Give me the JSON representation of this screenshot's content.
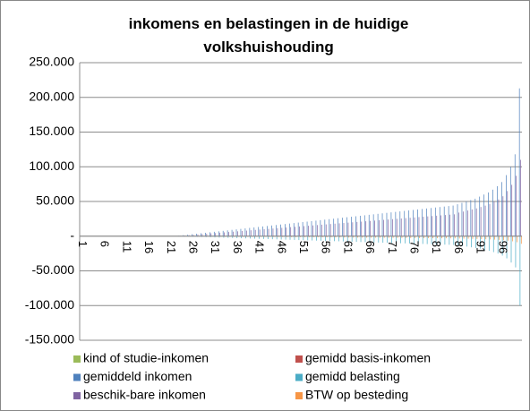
{
  "chart_data": {
    "type": "bar",
    "title": "inkomens en belastingen in de huidige volkshuishouding",
    "categories": [
      "1",
      null,
      null,
      null,
      null,
      "6",
      null,
      null,
      null,
      null,
      "11",
      null,
      null,
      null,
      null,
      "16",
      null,
      null,
      null,
      null,
      "21",
      null,
      null,
      null,
      null,
      "26",
      null,
      null,
      null,
      null,
      "31",
      null,
      null,
      null,
      null,
      "36",
      null,
      null,
      null,
      null,
      "41",
      null,
      null,
      null,
      null,
      "46",
      null,
      null,
      null,
      null,
      "51",
      null,
      null,
      null,
      null,
      "56",
      null,
      null,
      null,
      null,
      "61",
      null,
      null,
      null,
      null,
      "66",
      null,
      null,
      null,
      null,
      "71",
      null,
      null,
      null,
      null,
      "76",
      null,
      null,
      null,
      null,
      "81",
      null,
      null,
      null,
      null,
      "86",
      null,
      null,
      null,
      null,
      "91",
      null,
      null,
      null,
      null,
      "96",
      null,
      null,
      null,
      null
    ],
    "series": [
      {
        "name": "kind of studie-inkomen",
        "color": "#9bbb59",
        "values": [
          0,
          0,
          0,
          0,
          0,
          0,
          0,
          0,
          0,
          0,
          0,
          0,
          0,
          0,
          0,
          0,
          0,
          0,
          0,
          0,
          0,
          0,
          0,
          0,
          0,
          0,
          0,
          0,
          0,
          0,
          0,
          0,
          0,
          0,
          0,
          0,
          0,
          0,
          0,
          0,
          0,
          0,
          0,
          0,
          0,
          0,
          0,
          0,
          0,
          0,
          0,
          0,
          0,
          0,
          0,
          0,
          0,
          0,
          0,
          0,
          0,
          0,
          0,
          0,
          0,
          0,
          0,
          0,
          0,
          0,
          0,
          0,
          0,
          0,
          0,
          0,
          0,
          0,
          0,
          0,
          0,
          0,
          0,
          0,
          0,
          0,
          0,
          0,
          0,
          0,
          0,
          0,
          0,
          0,
          0,
          0,
          0,
          0,
          0,
          0
        ]
      },
      {
        "name": "gemidd basis-inkomen",
        "color": "#c0504d",
        "values": [
          0,
          0,
          0,
          0,
          0,
          0,
          0,
          0,
          0,
          0,
          0,
          0,
          0,
          0,
          0,
          0,
          0,
          0,
          0,
          0,
          0,
          0,
          0,
          0,
          0,
          0,
          0,
          0,
          0,
          0,
          0,
          0,
          0,
          0,
          0,
          0,
          0,
          0,
          0,
          0,
          0,
          0,
          0,
          0,
          0,
          0,
          0,
          0,
          0,
          0,
          0,
          0,
          0,
          0,
          0,
          0,
          0,
          0,
          0,
          0,
          0,
          0,
          0,
          0,
          0,
          0,
          0,
          0,
          0,
          0,
          0,
          0,
          0,
          0,
          0,
          0,
          0,
          0,
          0,
          0,
          0,
          0,
          0,
          0,
          0,
          0,
          0,
          0,
          0,
          0,
          0,
          0,
          0,
          0,
          0,
          0,
          0,
          0,
          0,
          0
        ]
      },
      {
        "name": "gemiddeld inkomen",
        "color": "#4f81bd",
        "values": [
          0,
          0,
          0,
          0,
          0,
          0,
          0,
          0,
          0,
          0,
          0,
          0,
          0,
          0,
          0,
          0,
          0,
          0,
          0,
          0,
          0,
          0,
          700,
          1400,
          2100,
          2800,
          3500,
          4200,
          4900,
          5600,
          6300,
          7000,
          7700,
          8400,
          9100,
          9800,
          10500,
          11200,
          11900,
          12600,
          13300,
          14000,
          14700,
          15400,
          16100,
          16800,
          17500,
          18200,
          18900,
          19600,
          20300,
          21000,
          21700,
          22400,
          23100,
          23800,
          24500,
          25200,
          25900,
          26600,
          27300,
          28000,
          28700,
          29400,
          30100,
          30800,
          31500,
          32200,
          32900,
          33600,
          34300,
          35000,
          35700,
          36400,
          37100,
          37800,
          38500,
          39200,
          39900,
          40600,
          41300,
          42000,
          42700,
          43400,
          44100,
          46000,
          48000,
          50000,
          52000,
          54000,
          57000,
          60000,
          63000,
          67000,
          72000,
          78000,
          88000,
          100000,
          118000,
          213000
        ]
      },
      {
        "name": "gemidd belasting",
        "color": "#4bacc6",
        "values": [
          0,
          0,
          0,
          0,
          0,
          0,
          0,
          0,
          0,
          0,
          0,
          0,
          0,
          0,
          0,
          0,
          0,
          0,
          0,
          0,
          0,
          0,
          -200,
          -400,
          -600,
          -800,
          -1000,
          -1200,
          -1400,
          -1600,
          -1800,
          -2000,
          -2200,
          -2400,
          -2600,
          -2800,
          -3000,
          -3200,
          -3400,
          -3600,
          -3800,
          -4000,
          -4200,
          -4400,
          -4600,
          -4800,
          -5000,
          -5200,
          -5400,
          -5600,
          -5800,
          -6000,
          -6200,
          -6400,
          -6600,
          -6800,
          -7000,
          -7200,
          -7400,
          -7600,
          -7800,
          -8000,
          -8200,
          -8400,
          -8600,
          -8800,
          -9000,
          -9200,
          -9400,
          -9600,
          -9800,
          -10000,
          -10200,
          -10400,
          -10600,
          -10800,
          -11000,
          -11200,
          -11400,
          -11600,
          -11800,
          -12000,
          -12200,
          -12400,
          -12600,
          -13000,
          -14000,
          -15000,
          -16000,
          -17000,
          -18000,
          -20000,
          -21000,
          -23000,
          -25000,
          -28000,
          -32000,
          -38000,
          -45000,
          -100000
        ]
      },
      {
        "name": "beschik-bare inkomen",
        "color": "#8064a2",
        "values": [
          0,
          0,
          0,
          0,
          0,
          0,
          0,
          0,
          0,
          0,
          0,
          0,
          0,
          0,
          0,
          0,
          0,
          0,
          0,
          0,
          0,
          0,
          500,
          1000,
          1500,
          2000,
          2500,
          3000,
          3500,
          4000,
          4500,
          5000,
          5500,
          6000,
          6500,
          7000,
          7500,
          8000,
          8500,
          9000,
          9500,
          10000,
          10500,
          11000,
          11500,
          12000,
          12500,
          13000,
          13500,
          14000,
          14500,
          15000,
          15500,
          16000,
          16500,
          17000,
          17500,
          18000,
          18500,
          19000,
          19500,
          20000,
          20500,
          21000,
          21500,
          22000,
          22500,
          23000,
          23500,
          24000,
          24500,
          25000,
          25500,
          26000,
          26500,
          27000,
          27500,
          28000,
          28500,
          29000,
          29500,
          30000,
          30500,
          31000,
          31500,
          34000,
          35500,
          37000,
          38500,
          40000,
          42000,
          44000,
          46500,
          49500,
          53000,
          57500,
          65000,
          74000,
          87000,
          110000
        ]
      },
      {
        "name": "BTW op besteding",
        "color": "#f79646",
        "values": [
          0,
          0,
          0,
          0,
          0,
          0,
          0,
          0,
          0,
          0,
          0,
          0,
          0,
          0,
          0,
          0,
          0,
          0,
          0,
          0,
          0,
          0,
          -50,
          -100,
          -150,
          -200,
          -250,
          -300,
          -350,
          -400,
          -450,
          -500,
          -550,
          -600,
          -650,
          -700,
          -750,
          -800,
          -850,
          -900,
          -950,
          -1000,
          -1050,
          -1100,
          -1150,
          -1200,
          -1250,
          -1300,
          -1350,
          -1400,
          -1450,
          -1500,
          -1550,
          -1600,
          -1650,
          -1700,
          -1750,
          -1800,
          -1850,
          -1900,
          -1950,
          -2000,
          -2050,
          -2100,
          -2150,
          -2200,
          -2250,
          -2300,
          -2350,
          -2400,
          -2450,
          -2500,
          -2550,
          -2600,
          -2650,
          -2700,
          -2750,
          -2800,
          -2850,
          -2900,
          -2950,
          -3000,
          -3050,
          -3100,
          -3150,
          -3400,
          -3550,
          -3700,
          -3850,
          -4000,
          -4200,
          -4400,
          -4650,
          -4950,
          -5300,
          -5750,
          -6500,
          -7400,
          -8700,
          -11000
        ]
      }
    ],
    "ylim": [
      -150000,
      250000
    ],
    "yticks": [
      {
        "value": -150000,
        "label": "-150.000"
      },
      {
        "value": -100000,
        "label": "-100.000"
      },
      {
        "value": -50000,
        "label": "-50.000"
      },
      {
        "value": 0,
        "label": "-"
      },
      {
        "value": 50000,
        "label": "50.000"
      },
      {
        "value": 100000,
        "label": "100.000"
      },
      {
        "value": 150000,
        "label": "150.000"
      },
      {
        "value": 200000,
        "label": "200.000"
      },
      {
        "value": 250000,
        "label": "250.000"
      }
    ],
    "grid": true,
    "legend": "bottom"
  }
}
